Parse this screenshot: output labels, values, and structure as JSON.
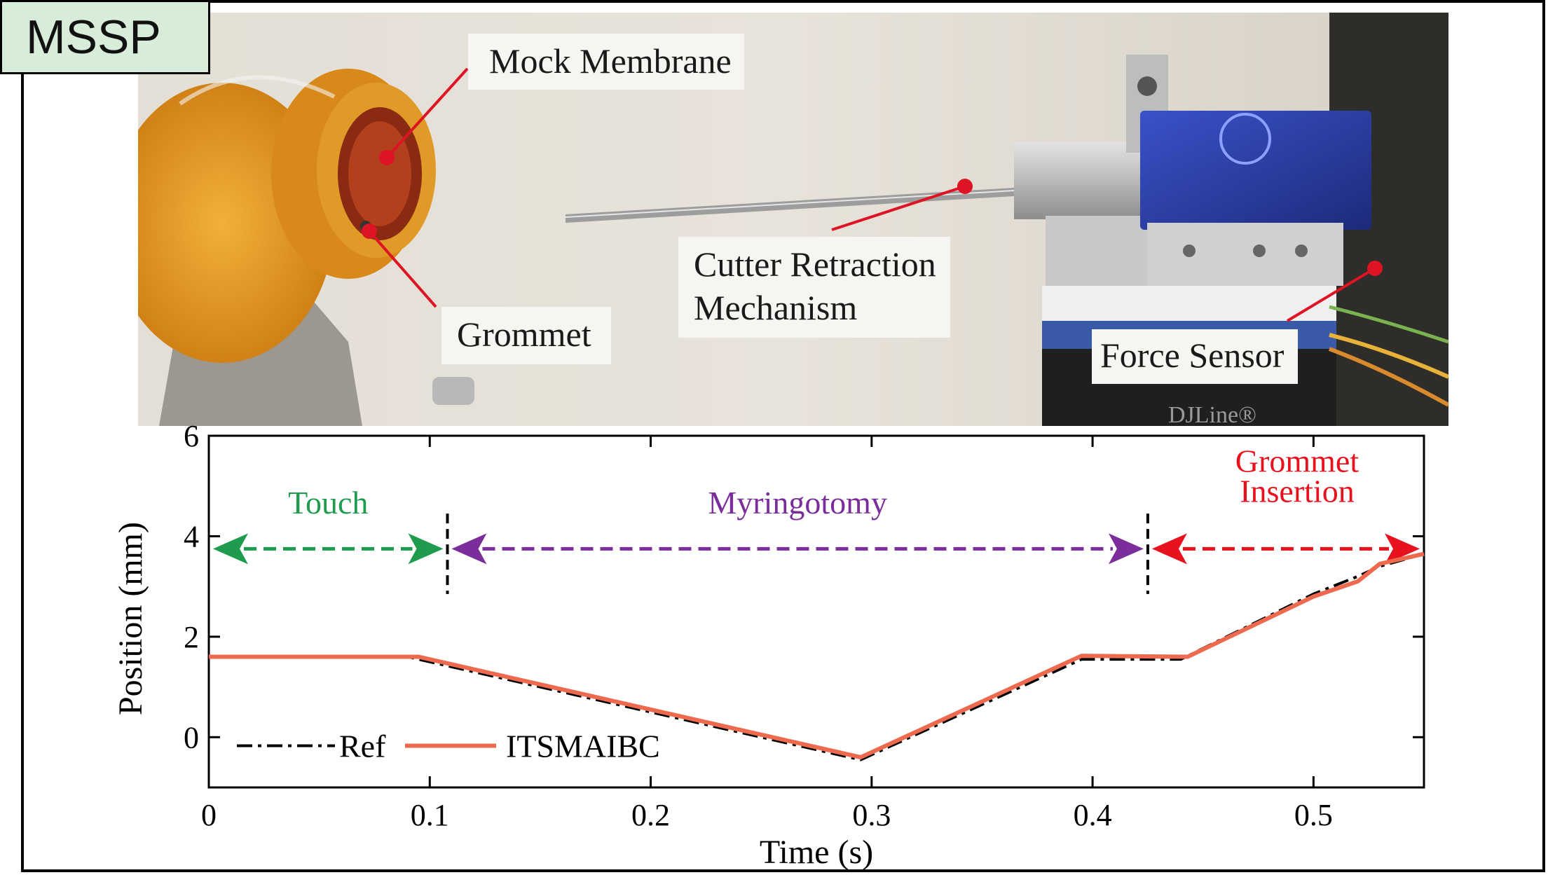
{
  "badge": {
    "label": "MSSP"
  },
  "photo": {
    "labels": {
      "mock_membrane": "Mock Membrane",
      "grommet": "Grommet",
      "cutter_line1": "Cutter Retraction",
      "cutter_line2": "Mechanism",
      "force_sensor": "Force Sensor"
    },
    "sensor_brand": "DJLine®"
  },
  "colors": {
    "ref": "#000000",
    "itsmaibc": "#ee6a4f",
    "touch": "#1e9b4c",
    "myringotomy": "#7a2d9b",
    "grommet_insertion": "#e8121e",
    "marker": "#dd1424"
  },
  "chart_data": {
    "type": "line",
    "xlabel": "Time (s)",
    "ylabel": "Position (mm)",
    "xlim": [
      0,
      0.55
    ],
    "ylim": [
      -1,
      6
    ],
    "xticks": [
      0,
      0.1,
      0.2,
      0.3,
      0.4,
      0.5
    ],
    "xtick_labels": [
      "0",
      "0.1",
      "0.2",
      "0.3",
      "0.4",
      "0.5"
    ],
    "yticks": [
      0,
      2,
      4,
      6
    ],
    "ytick_labels": [
      "0",
      "2",
      "4",
      "6"
    ],
    "grid": false,
    "legend": {
      "placement": "bottom-left",
      "orientation": "horizontal"
    },
    "series": [
      {
        "name": "Ref",
        "style": "dash-dot",
        "x": [
          0,
          0.09,
          0.295,
          0.395,
          0.44,
          0.5,
          0.52,
          0.53,
          0.55
        ],
        "y": [
          1.6,
          1.6,
          -0.45,
          1.55,
          1.55,
          2.85,
          3.2,
          3.4,
          3.65
        ]
      },
      {
        "name": "ITSMAIBC",
        "style": "solid",
        "x": [
          0,
          0.095,
          0.295,
          0.3,
          0.395,
          0.443,
          0.5,
          0.52,
          0.53,
          0.55
        ],
        "y": [
          1.6,
          1.6,
          -0.4,
          -0.3,
          1.62,
          1.6,
          2.8,
          3.1,
          3.45,
          3.65
        ]
      }
    ],
    "phases": [
      {
        "label": "Touch",
        "x_start": 0,
        "x_end": 0.108,
        "y": 3.75
      },
      {
        "label": "Myringotomy",
        "x_start": 0.108,
        "x_end": 0.425,
        "y": 3.75
      },
      {
        "label": "Grommet",
        "label2": "Insertion",
        "x_start": 0.425,
        "x_end": 0.55,
        "y": 3.75
      }
    ],
    "boundaries": [
      0.108,
      0.425
    ]
  }
}
